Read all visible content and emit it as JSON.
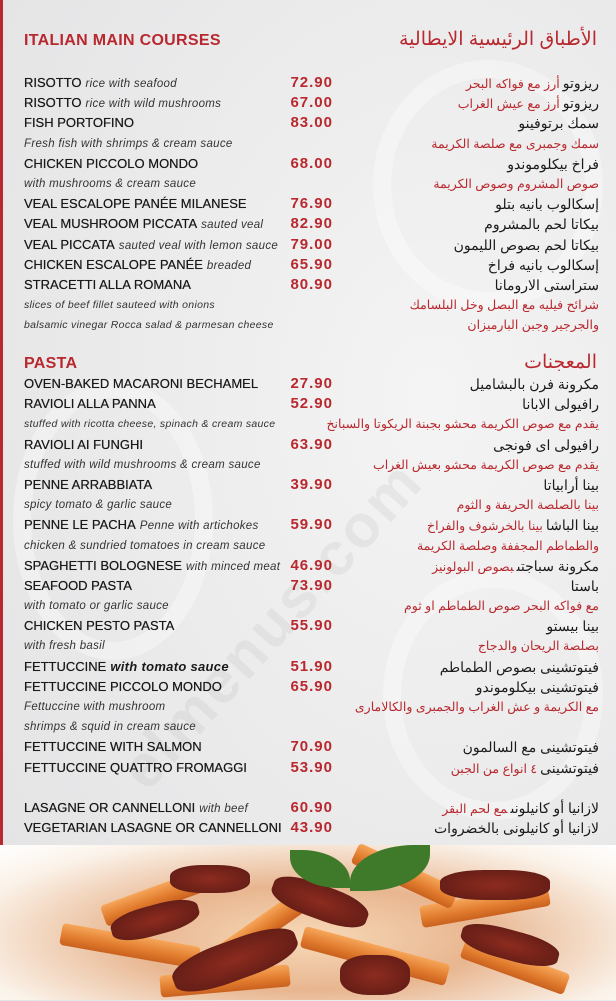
{
  "main_courses": {
    "title_en": "ITALIAN MAIN COURSES",
    "title_ar": "الأطباق الرئيسية الايطالية",
    "rows": [
      {
        "type": "item",
        "name": "RISOTTO",
        "desc": "rice with seafood",
        "price": "72.90",
        "ar": "ريزوتو",
        "ar_desc": "أرز مع فواكه البحر"
      },
      {
        "type": "item",
        "name": "RISOTTO",
        "desc": "rice with wild mushrooms",
        "price": "67.00",
        "ar": "ريزوتو",
        "ar_desc": "أرز مع عيش الغراب"
      },
      {
        "type": "item",
        "name": "FISH PORTOFINO",
        "price": "83.00",
        "ar": "سمك برتوفينو"
      },
      {
        "type": "note",
        "en": "Fresh fish with shrimps & cream sauce",
        "ar": "سمك وجمبرى مع صلصة الكريمة"
      },
      {
        "type": "item",
        "name": "CHICKEN PICCOLO MONDO",
        "price": "68.00",
        "ar": "فراخ بيكلوموندو"
      },
      {
        "type": "note",
        "en": "with mushrooms & cream sauce",
        "ar": "صوص المشروم وصوص الكريمة"
      },
      {
        "type": "item",
        "name": "VEAL ESCALOPE PANÉE MILANESE",
        "price": "76.90",
        "ar": "إسكالوب بانيه بتلو"
      },
      {
        "type": "item",
        "name": "VEAL MUSHROOM PICCATA",
        "desc": "sauted veal",
        "price": "82.90",
        "ar": "بيكاتا لحم بالمشروم"
      },
      {
        "type": "item",
        "name": "VEAL PICCATA",
        "desc": "sauted veal with lemon sauce",
        "price": "79.00",
        "ar": "بيكاتا لحم بصوص الليمون"
      },
      {
        "type": "item",
        "name": "CHICKEN ESCALOPE PANÉE",
        "desc": "breaded",
        "price": "65.90",
        "ar": "إسكالوب بانيه فراخ"
      },
      {
        "type": "item",
        "name": "STRACETTI ALLA ROMANA",
        "price": "80.90",
        "ar": "ستراستى الارومانا"
      },
      {
        "type": "note",
        "small": true,
        "en": "slices of beef fillet sauteed with onions",
        "ar": "شرائح فيليه مع البصل وخل البلسامك"
      },
      {
        "type": "note",
        "small": true,
        "en": "balsamic vinegar Rocca salad & parmesan cheese",
        "ar": "والجرجير وجبن البارميزان"
      }
    ]
  },
  "pasta": {
    "title_en": "PASTA",
    "title_ar": "المعجنات",
    "rows": [
      {
        "type": "item",
        "name": "OVEN-BAKED MACARONI BECHAMEL",
        "price": "27.90",
        "ar": "مكرونة فرن بالبشاميل"
      },
      {
        "type": "item",
        "name": "RAVIOLI ALLA PANNA",
        "price": "52.90",
        "ar": "رافيولى الابانا"
      },
      {
        "type": "note",
        "small": true,
        "en": "stuffed with ricotta cheese, spinach & cream sauce",
        "ar": "يقدم مع صوص الكريمة محشو بجبنة الريكوتا والسبانخ"
      },
      {
        "type": "item",
        "name": "RAVIOLI AI FUNGHI",
        "price": "63.90",
        "ar": "رافيولى اى فونجى"
      },
      {
        "type": "note",
        "en": "stuffed with wild mushrooms & cream sauce",
        "ar": "يقدم مع صوص الكريمة محشو بعيش الغراب"
      },
      {
        "type": "item",
        "name": "PENNE ARRABBIATA",
        "price": "39.90",
        "ar": "بينا أرابياتا"
      },
      {
        "type": "note",
        "en": "spicy tomato & garlic sauce",
        "ar": "بينا بالصلصة الحريفة و الثوم"
      },
      {
        "type": "item",
        "name": "PENNE LE PACHA",
        "desc": "Penne with artichokes",
        "price": "59.90",
        "ar": "بينا الباشا",
        "ar_desc": "بينا بالخرشوف والفراخ"
      },
      {
        "type": "note",
        "en": "chicken & sundried tomatoes in cream sauce",
        "ar": "والطماطم المجففة وصلصة الكريمة"
      },
      {
        "type": "item",
        "name": "SPAGHETTI BOLOGNESE",
        "desc": "with minced meat",
        "price": "46.90",
        "ar": "مكرونة سباجتى",
        "ar_desc": "بصوص البولونيز"
      },
      {
        "type": "item",
        "name": "SEAFOOD PASTA",
        "price": "73.90",
        "ar": "باستا"
      },
      {
        "type": "note",
        "en": "with tomato or garlic sauce",
        "ar": "مع فواكه البحر  صوص الطماطم او ثوم"
      },
      {
        "type": "item",
        "name": "CHICKEN PESTO PASTA",
        "price": "55.90",
        "ar": "بينا بيستو"
      },
      {
        "type": "note",
        "en": "with fresh basil",
        "ar": "بصلصة الريحان والدجاج"
      },
      {
        "type": "item",
        "name": "FETTUCCINE",
        "desc": "with tomato sauce",
        "desc_bold": true,
        "price": "51.90",
        "ar": "فيتوتشينى بصوص الطماطم"
      },
      {
        "type": "item",
        "name": "FETTUCCINE PICCOLO MONDO",
        "price": "65.90",
        "ar": "فيتوتشينى بيكلوموندو"
      },
      {
        "type": "note",
        "en": "Fettuccine with mushroom",
        "ar": "مع الكريمة و عش الغراب والجمبرى والكالامارى"
      },
      {
        "type": "note",
        "en": " shrimps & squid in cream sauce"
      },
      {
        "type": "item",
        "name": "FETTUCCINE WITH SALMON",
        "price": "70.90",
        "ar": "فيتوتشينى مع السالمون"
      },
      {
        "type": "item",
        "name": "FETTUCCINE QUATTRO FROMAGGI",
        "price": "53.90",
        "ar": "فيتوتشينى",
        "ar_desc": "٤ انواع من الجبن"
      },
      {
        "type": "gap"
      },
      {
        "type": "item",
        "name": "LASAGNE OR CANNELLONI",
        "desc": "with beef",
        "price": "60.90",
        "ar": "لازانيا  أو كانيلونى",
        "ar_desc": "مع لحم البقر"
      },
      {
        "type": "item",
        "name": "VEGETARIAN LASAGNE OR CANNELLONI",
        "price": "43.90",
        "ar": "لازانيا أو كانيلونى بالخضروات"
      }
    ]
  },
  "watermark": "elmenus.com",
  "colors": {
    "accent": "#b8282e",
    "text": "#1a1a1a",
    "background": "#e9e9ea"
  },
  "photo": {
    "icon": "pasta-dish-photo"
  }
}
